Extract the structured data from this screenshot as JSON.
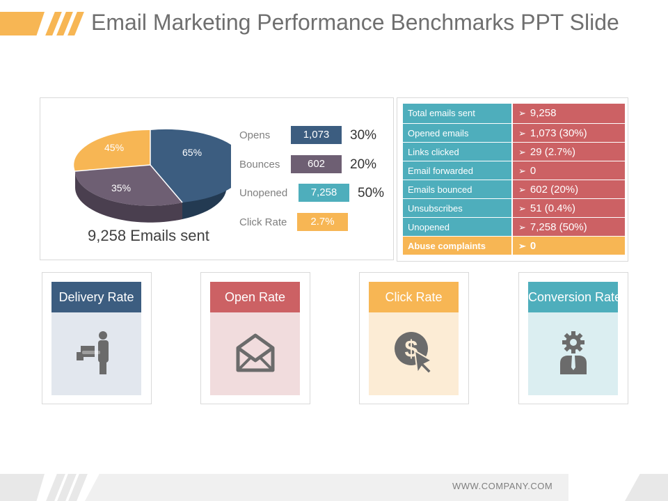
{
  "title": "Email Marketing Performance Benchmarks PPT Slide",
  "colors": {
    "accent_orange": "#f7b654",
    "navy": "#3c5d80",
    "purple_gray": "#6e5f73",
    "teal": "#4eaebc",
    "red": "#cc6164"
  },
  "pie": {
    "slices": [
      {
        "label": "65%",
        "color": "#3c5d80"
      },
      {
        "label": "35%",
        "color": "#6e5f73"
      },
      {
        "label": "45%",
        "color": "#f7b654"
      }
    ],
    "caption": "9,258 Emails sent"
  },
  "metrics": [
    {
      "name": "Opens",
      "value": "1,073",
      "percent": "30%",
      "color": "#3c5d80"
    },
    {
      "name": "Bounces",
      "value": "602",
      "percent": "20%",
      "color": "#6e5f73"
    },
    {
      "name": "Unopened",
      "value": "7,258",
      "percent": "50%",
      "color": "#4eaebc"
    },
    {
      "name": "Click Rate",
      "value": "2.7%",
      "percent": "",
      "color": "#f7b654"
    }
  ],
  "table": [
    {
      "label": "Total emails sent",
      "value": "9,258"
    },
    {
      "label": "Opened emails",
      "value": "1,073 (30%)"
    },
    {
      "label": "Links clicked",
      "value": "29 (2.7%)"
    },
    {
      "label": "Email forwarded",
      "value": "0"
    },
    {
      "label": "Emails bounced",
      "value": "602 (20%)"
    },
    {
      "label": "Unsubscribes",
      "value": "51 (0.4%)"
    },
    {
      "label": "Unopened",
      "value": "7,258 (50%)"
    },
    {
      "label": "Abuse complaints",
      "value": "0"
    }
  ],
  "cards": [
    {
      "title": "Delivery Rate",
      "icon": "delivery-person-icon",
      "head_color": "#3c5d80",
      "body_color": "#e2e7ee"
    },
    {
      "title": "Open Rate",
      "icon": "open-envelope-icon",
      "head_color": "#cc6164",
      "body_color": "#f1dcdd"
    },
    {
      "title": "Click Rate",
      "icon": "dollar-click-icon",
      "head_color": "#f7b654",
      "body_color": "#fcecd5"
    },
    {
      "title": "Conversion Rate",
      "icon": "gear-person-icon",
      "head_color": "#4eaebc",
      "body_color": "#dbeef1"
    }
  ],
  "footer": {
    "url": "WWW.COMPANY.COM"
  }
}
